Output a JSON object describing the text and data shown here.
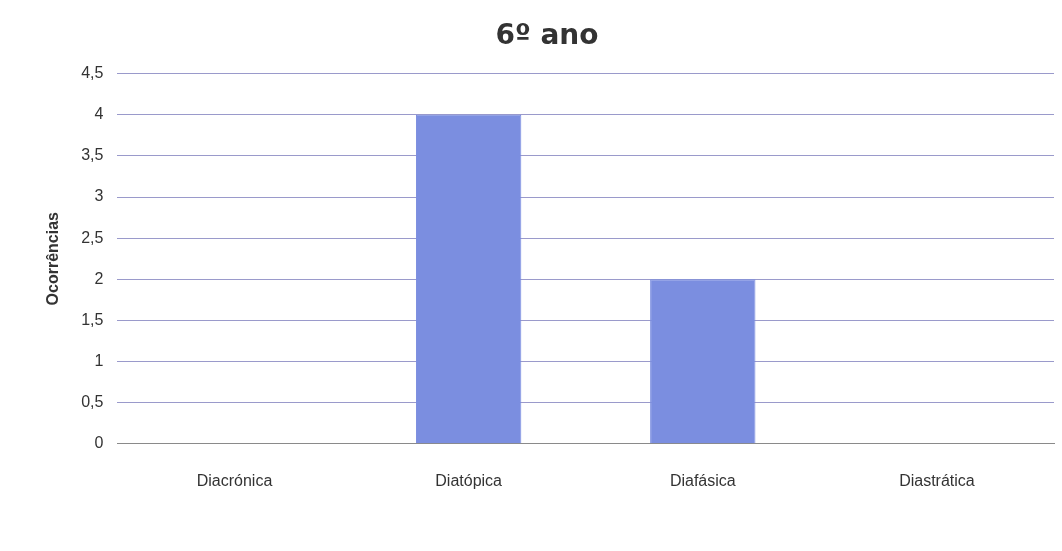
{
  "chart_data": {
    "type": "bar",
    "title": "6º ano",
    "ylabel": "Ocorrências",
    "categories": [
      "Diacrónica",
      "Diatópica",
      "Diafásica",
      "Diastrática"
    ],
    "values": [
      0,
      4,
      2,
      0
    ],
    "color": "#7b8ee0",
    "ylim": [
      0,
      4.5
    ],
    "yticks": [
      0,
      {
        "value": 0.5,
        "label": "0,5"
      },
      1,
      {
        "value": 1.5,
        "label": "1,5"
      },
      2,
      {
        "value": 2.5,
        "label": "2,5"
      },
      3,
      {
        "value": 3.5,
        "label": "3,5"
      },
      4,
      {
        "value": 4.5,
        "label": "4,5"
      }
    ],
    "grid": "y",
    "legend": false
  }
}
